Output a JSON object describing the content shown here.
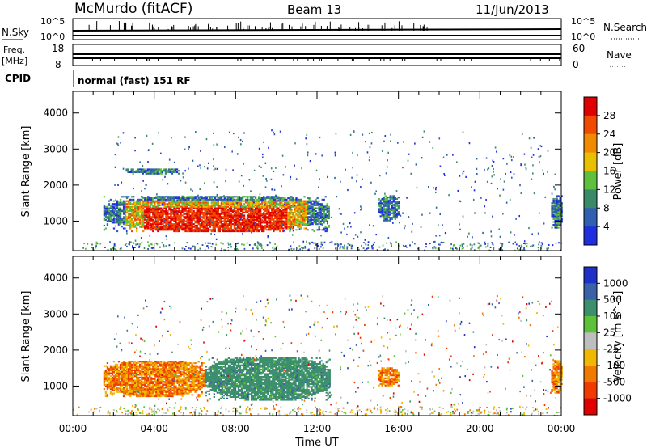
{
  "header": {
    "station": "McMurdo (fitACF)",
    "beam": "Beam 13",
    "date": "11/Jun/2013"
  },
  "top_panels": {
    "nsky_label": "N.Sky",
    "nsearch_label": "N.Search",
    "nsky_ticks": [
      "10^5",
      "10^0"
    ],
    "nsearch_ticks": [
      "10^5",
      "10^0"
    ],
    "freq_label": "Freq.",
    "freq_unit": "[MHz]",
    "freq_ticks": [
      "18",
      "8"
    ],
    "nave_label": "Nave",
    "nave_ticks": [
      "60",
      "0"
    ],
    "cpid_label": "CPID",
    "cpid_text": "normal (fast) 151 RF"
  },
  "chart_data": [
    {
      "type": "heatmap",
      "panel": "power",
      "ylabel": "Slant Range [km]",
      "xlabel": "",
      "xlim": [
        0,
        24
      ],
      "ylim": [
        180,
        4600
      ],
      "y_ticks": [
        "1000",
        "2000",
        "3000",
        "4000"
      ],
      "colorbar": {
        "label": "Power [dB]",
        "ticks": [
          "4",
          "8",
          "12",
          "16",
          "20",
          "24",
          "28"
        ],
        "colors": [
          "#1f2fe0",
          "#2f5fb0",
          "#3a8a6a",
          "#5fbf3f",
          "#e8c000",
          "#f08a00",
          "#f04a00",
          "#e00000"
        ],
        "range": [
          0,
          32
        ]
      },
      "regions": [
        {
          "t0": 1.5,
          "t1": 12.6,
          "r0": 700,
          "r1": 1700,
          "level": "strong echoes 20-30 dB, core 4-10 UT"
        },
        {
          "t0": 2.6,
          "t1": 5.2,
          "r0": 2300,
          "r1": 2450,
          "level": "weak 4-8 dB"
        },
        {
          "t0": 15.0,
          "t1": 16.0,
          "r0": 1000,
          "r1": 1700,
          "level": "weak 4-12 dB"
        },
        {
          "t0": 23.5,
          "t1": 24.0,
          "r0": 800,
          "r1": 1700,
          "level": "mixed"
        }
      ]
    },
    {
      "type": "heatmap",
      "panel": "velocity",
      "ylabel": "Slant Range [km]",
      "xlabel": "Time UT",
      "xlim": [
        0,
        24
      ],
      "ylim": [
        180,
        4600
      ],
      "x_ticks": [
        "00:00",
        "04:00",
        "08:00",
        "12:00",
        "16:00",
        "20:00",
        "00:00"
      ],
      "y_ticks": [
        "1000",
        "2000",
        "3000",
        "4000"
      ],
      "colorbar": {
        "label": "Velocity [m s^-1]",
        "ticks": [
          "1000",
          "500",
          "100",
          "25",
          "-25",
          "-100",
          "-500",
          "-1000"
        ],
        "colors": [
          "#1f30c8",
          "#3a62a8",
          "#3c8f6c",
          "#5cc23c",
          "#bebebe",
          "#f0b800",
          "#f07a00",
          "#f03a00",
          "#e00000"
        ],
        "range": [
          -1200,
          1200
        ]
      },
      "regions": [
        {
          "t0": 1.5,
          "t1": 6.5,
          "r0": 700,
          "r1": 1700,
          "level": "-100 to -500 m/s"
        },
        {
          "t0": 6.5,
          "t1": 12.6,
          "r0": 600,
          "r1": 1800,
          "level": "100 to 500 m/s"
        },
        {
          "t0": 15.0,
          "t1": 16.0,
          "r0": 1000,
          "r1": 1500,
          "level": "-100 to -500 m/s"
        },
        {
          "t0": 23.5,
          "t1": 24.0,
          "r0": 800,
          "r1": 1700,
          "level": "mixed"
        }
      ]
    }
  ]
}
